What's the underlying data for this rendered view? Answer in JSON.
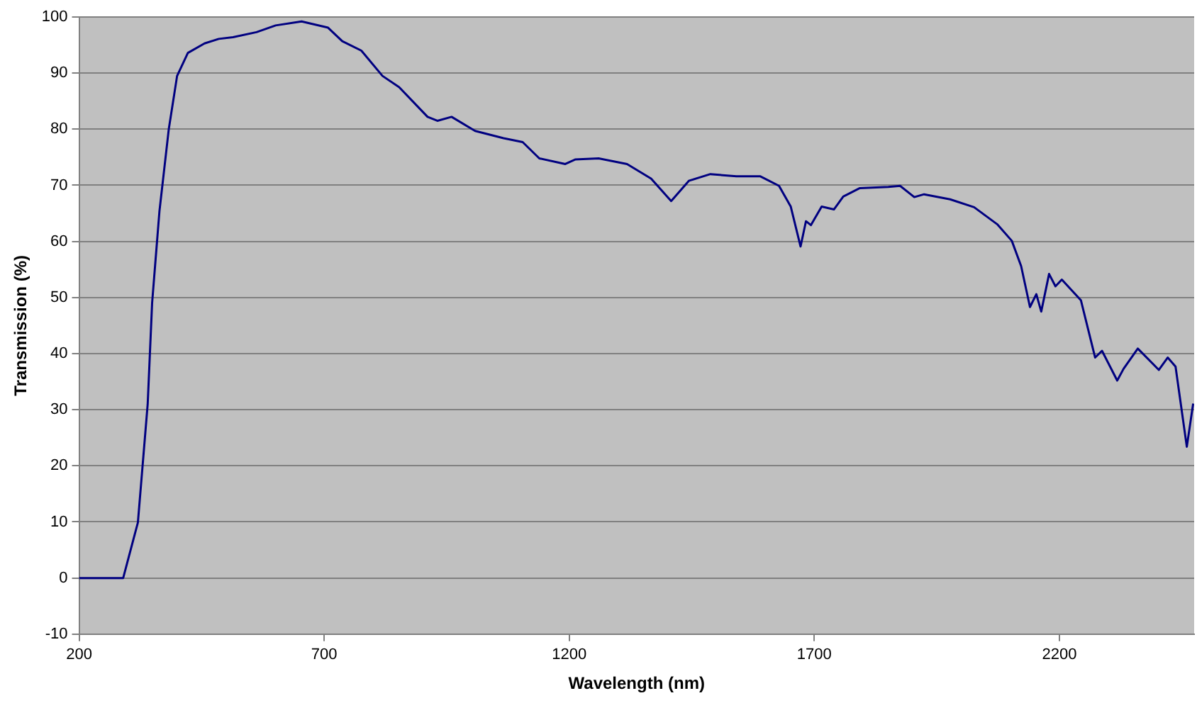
{
  "chart_data": {
    "type": "line",
    "xlabel": "Wavelength (nm)",
    "ylabel": "Transmission (%)",
    "xlim": [
      200,
      2475
    ],
    "xticks": [
      200,
      700,
      1200,
      1700,
      2200
    ],
    "ylim": [
      -10,
      100
    ],
    "yticks": [
      -10,
      0,
      10,
      20,
      30,
      40,
      50,
      60,
      70,
      80,
      90,
      100
    ],
    "grid": "y",
    "legend": false,
    "marker": "none",
    "line_style": "solid",
    "series": [
      {
        "color": "#000080",
        "x": [
          200,
          290,
          320,
          340,
          349,
          364,
          383,
          400,
          422,
          456,
          485,
          514,
          562,
          601,
          654,
          708,
          737,
          776,
          819,
          853,
          911,
          931,
          960,
          1008,
          1066,
          1105,
          1139,
          1192,
          1212,
          1260,
          1318,
          1367,
          1408,
          1444,
          1488,
          1541,
          1590,
          1628,
          1652,
          1672,
          1683,
          1693,
          1715,
          1740,
          1759,
          1793,
          1851,
          1875,
          1904,
          1924,
          1977,
          2026,
          2074,
          2103,
          2122,
          2140,
          2153,
          2163,
          2179,
          2192,
          2205,
          2244,
          2273,
          2287,
          2318,
          2331,
          2360,
          2403,
          2421,
          2437,
          2460,
          2473
        ],
        "values": [
          0,
          0,
          9.9,
          31,
          49,
          65.4,
          80,
          89.5,
          93.6,
          95.3,
          96.1,
          96.4,
          97.3,
          98.5,
          99.2,
          98.1,
          95.7,
          94,
          89.5,
          87.5,
          82.2,
          81.5,
          82.2,
          79.7,
          78.4,
          77.7,
          74.8,
          73.8,
          74.6,
          74.8,
          73.8,
          71.2,
          67.2,
          70.8,
          72,
          71.6,
          71.6,
          69.9,
          66.2,
          59.1,
          63.6,
          62.9,
          66.2,
          65.7,
          68,
          69.5,
          69.7,
          69.9,
          67.9,
          68.4,
          67.5,
          66.1,
          63,
          60.1,
          55.6,
          48.3,
          50.6,
          47.5,
          54.2,
          52,
          53.2,
          49.5,
          39.3,
          40.5,
          35.2,
          37.3,
          40.9,
          37.1,
          39.3,
          37.7,
          23.4,
          31.1
        ]
      }
    ]
  }
}
